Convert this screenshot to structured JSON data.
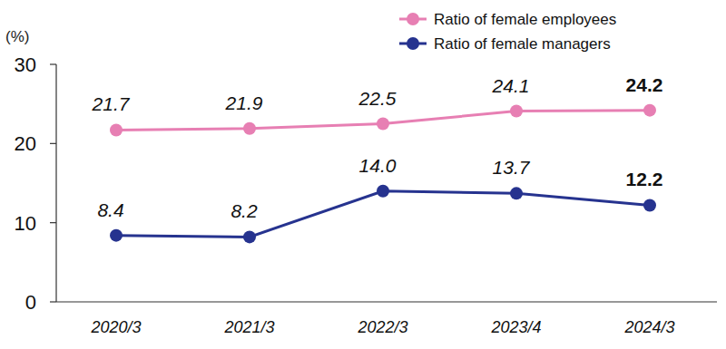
{
  "chart_data": {
    "type": "line",
    "categories": [
      "2020/3",
      "2021/3",
      "2022/3",
      "2023/4",
      "2024/3"
    ],
    "series": [
      {
        "name": "Ratio of female employees",
        "color": "#e77fb3",
        "marker": "circle",
        "values": [
          21.7,
          21.9,
          22.5,
          24.1,
          24.2
        ],
        "value_labels": [
          "21.7",
          "21.9",
          "22.5",
          "24.1",
          "24.2"
        ]
      },
      {
        "name": "Ratio of female managers",
        "color": "#26338f",
        "marker": "circle",
        "values": [
          8.4,
          8.2,
          14.0,
          13.7,
          12.2
        ],
        "value_labels": [
          "8.4",
          "8.2",
          "14.0",
          "13.7",
          "12.2"
        ]
      }
    ],
    "ylabel": "(%)",
    "ylim": [
      0,
      30
    ],
    "yticks": [
      0,
      10,
      20,
      30
    ],
    "data_labels": true,
    "legend": "top-right",
    "grid": false
  }
}
